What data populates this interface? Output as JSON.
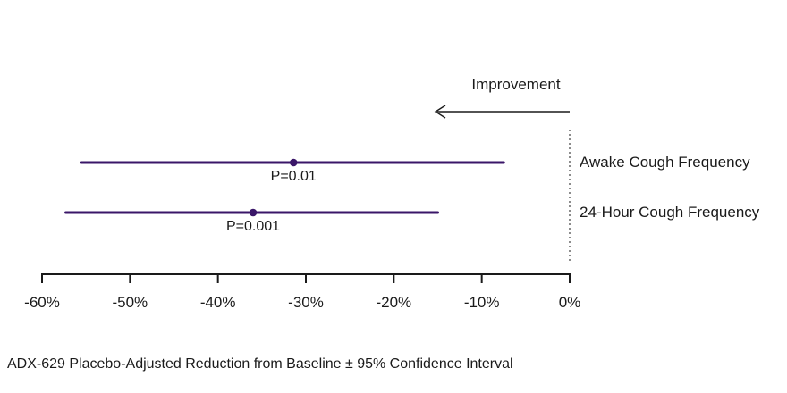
{
  "improvement_label": "Improvement",
  "caption": "ADX-629 Placebo-Adjusted Reduction from Baseline ± 95% Confidence Interval",
  "colors": {
    "ci_line": "#3a1668",
    "axis": "#1a1a1a",
    "text": "#1a1a1a"
  },
  "chart_data": {
    "type": "scatter",
    "subtype": "horizontal-confidence-interval-forest-plot",
    "title": "",
    "xlabel": "ADX-629 Placebo-Adjusted Reduction from Baseline ± 95% Confidence Interval",
    "ylabel": "",
    "x_unit": "%",
    "xlim": [
      -60,
      0
    ],
    "grid": false,
    "legend_position": "none",
    "tick_values": [
      -60,
      -50,
      -40,
      -30,
      -20,
      -10,
      0
    ],
    "tick_labels": [
      "-60%",
      "-50%",
      "-40%",
      "-30%",
      "-20%",
      "-10%",
      "0%"
    ],
    "zero_reference_line": 0,
    "annotation_arrow": {
      "label": "Improvement",
      "direction": "left"
    },
    "series": [
      {
        "label": "Awake Cough Frequency",
        "point_estimate": -31.4,
        "ci_low": -55.5,
        "ci_high": -7.5,
        "p_label": "P=0.01"
      },
      {
        "label": "24-Hour Cough Frequency",
        "point_estimate": -36.0,
        "ci_low": -57.3,
        "ci_high": -15.0,
        "p_label": "P=0.001"
      }
    ]
  }
}
